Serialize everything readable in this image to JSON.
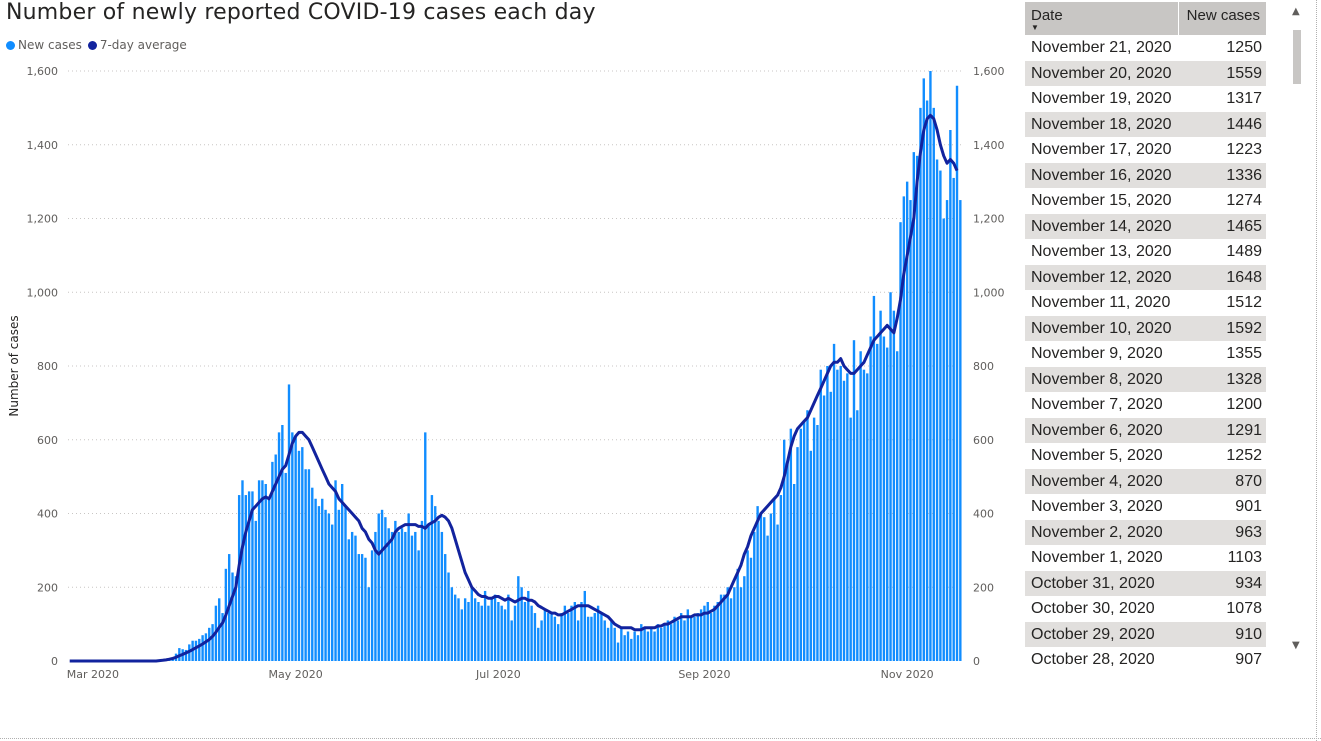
{
  "title": "Number of newly reported COVID-19 cases each day",
  "legend": [
    {
      "label": "New cases",
      "color": "#118dff"
    },
    {
      "label": "7-day average",
      "color": "#12239e"
    }
  ],
  "chart_data": {
    "type": "bar",
    "title": "Number of newly reported COVID-19 cases each day",
    "ylabel": "Number of cases",
    "xlabel": "",
    "ylim": [
      0,
      1600
    ],
    "yticks": [
      "0",
      "200",
      "400",
      "600",
      "800",
      "1,000",
      "1,200",
      "1,400",
      "1,600"
    ],
    "xticks": [
      "Mar 2020",
      "May 2020",
      "Jul 2020",
      "Sep 2020",
      "Nov 2020"
    ],
    "grid": true,
    "legend_position": "top-left",
    "x_start": "2020-02-23",
    "x_end": "2020-11-21",
    "series": [
      {
        "name": "New cases",
        "type": "bar",
        "color": "#118dff",
        "values": [
          0,
          0,
          0,
          0,
          0,
          0,
          0,
          0,
          0,
          0,
          0,
          0,
          0,
          0,
          0,
          0,
          0,
          0,
          0,
          0,
          0,
          0,
          0,
          0,
          0,
          0,
          1,
          2,
          3,
          5,
          8,
          10,
          20,
          35,
          32,
          30,
          45,
          55,
          55,
          60,
          70,
          75,
          90,
          100,
          150,
          170,
          130,
          250,
          290,
          240,
          230,
          450,
          490,
          450,
          460,
          460,
          380,
          490,
          490,
          480,
          440,
          540,
          560,
          620,
          640,
          510,
          750,
          620,
          610,
          570,
          580,
          520,
          520,
          470,
          440,
          420,
          440,
          410,
          400,
          370,
          490,
          410,
          480,
          420,
          330,
          350,
          340,
          290,
          290,
          280,
          200,
          300,
          350,
          400,
          410,
          390,
          360,
          350,
          380,
          350,
          360,
          350,
          400,
          340,
          350,
          300,
          380,
          620,
          370,
          450,
          420,
          380,
          350,
          290,
          240,
          200,
          180,
          170,
          140,
          170,
          160,
          200,
          170,
          160,
          150,
          190,
          150,
          170,
          180,
          160,
          150,
          140,
          180,
          110,
          150,
          230,
          200,
          160,
          190,
          150,
          130,
          90,
          110,
          140,
          130,
          130,
          120,
          100,
          130,
          150,
          130,
          150,
          160,
          110,
          160,
          190,
          120,
          120,
          130,
          150,
          130,
          110,
          90,
          110,
          90,
          50,
          90,
          70,
          80,
          60,
          80,
          70,
          100,
          90,
          80,
          90,
          80,
          100,
          90,
          100,
          110,
          100,
          120,
          110,
          130,
          110,
          140,
          120,
          120,
          130,
          140,
          150,
          160,
          130,
          150,
          160,
          180,
          180,
          200,
          170,
          200,
          250,
          200,
          230,
          300,
          280,
          350,
          420,
          400,
          390,
          340,
          400,
          440,
          370,
          450,
          600,
          540,
          630,
          480,
          580,
          630,
          650,
          680,
          570,
          660,
          640,
          790,
          720,
          800,
          730,
          860,
          790,
          800,
          760,
          780,
          660,
          870,
          680,
          840,
          790,
          780,
          880,
          990,
          860,
          950,
          880,
          850,
          1000,
          950,
          840,
          1190,
          1260,
          1300,
          1250,
          1380,
          1370,
          1500,
          1580,
          1520,
          1600,
          1500,
          1360,
          1330,
          1200,
          1250,
          1440,
          1310,
          1560,
          1250
        ]
      },
      {
        "name": "7-day average",
        "type": "line",
        "color": "#12239e",
        "values": [
          0,
          0,
          0,
          0,
          0,
          0,
          0,
          0,
          0,
          0,
          0,
          0,
          0,
          0,
          0,
          0,
          0,
          0,
          0,
          0,
          0,
          0,
          0,
          0,
          0,
          0,
          0,
          1,
          2,
          3,
          5,
          7,
          10,
          14,
          18,
          22,
          26,
          31,
          36,
          41,
          46,
          52,
          58,
          67,
          78,
          91,
          103,
          125,
          150,
          175,
          200,
          260,
          310,
          350,
          380,
          410,
          420,
          430,
          440,
          445,
          440,
          460,
          480,
          500,
          520,
          530,
          560,
          590,
          610,
          620,
          620,
          610,
          600,
          580,
          560,
          540,
          520,
          500,
          480,
          470,
          460,
          440,
          430,
          420,
          410,
          400,
          390,
          380,
          360,
          350,
          330,
          320,
          300,
          290,
          300,
          310,
          320,
          330,
          350,
          360,
          365,
          370,
          370,
          370,
          370,
          365,
          365,
          360,
          370,
          375,
          380,
          390,
          395,
          390,
          380,
          360,
          330,
          300,
          270,
          240,
          220,
          200,
          190,
          180,
          175,
          175,
          170,
          170,
          175,
          175,
          170,
          165,
          170,
          165,
          160,
          165,
          170,
          170,
          165,
          165,
          160,
          150,
          145,
          140,
          135,
          130,
          130,
          125,
          125,
          130,
          135,
          140,
          145,
          150,
          150,
          150,
          150,
          145,
          140,
          135,
          130,
          125,
          120,
          110,
          100,
          95,
          90,
          90,
          90,
          90,
          85,
          85,
          85,
          90,
          90,
          90,
          90,
          95,
          95,
          100,
          100,
          105,
          110,
          115,
          120,
          120,
          120,
          120,
          125,
          125,
          125,
          130,
          130,
          135,
          140,
          150,
          160,
          170,
          180,
          200,
          220,
          240,
          260,
          290,
          310,
          340,
          360,
          380,
          400,
          410,
          420,
          430,
          440,
          450,
          470,
          500,
          540,
          580,
          610,
          630,
          640,
          650,
          660,
          680,
          700,
          720,
          740,
          760,
          780,
          800,
          810,
          810,
          820,
          800,
          790,
          780,
          780,
          790,
          800,
          810,
          830,
          850,
          870,
          880,
          890,
          900,
          910,
          900,
          890,
          930,
          980,
          1050,
          1100,
          1150,
          1200,
          1300,
          1380,
          1440,
          1470,
          1480,
          1470,
          1440,
          1400,
          1370,
          1350,
          1360,
          1350,
          1330
        ]
      }
    ]
  },
  "table": {
    "headers": [
      "Date",
      "New cases"
    ],
    "rows": [
      [
        "November 21, 2020",
        "1250"
      ],
      [
        "November 20, 2020",
        "1559"
      ],
      [
        "November 19, 2020",
        "1317"
      ],
      [
        "November 18, 2020",
        "1446"
      ],
      [
        "November 17, 2020",
        "1223"
      ],
      [
        "November 16, 2020",
        "1336"
      ],
      [
        "November 15, 2020",
        "1274"
      ],
      [
        "November 14, 2020",
        "1465"
      ],
      [
        "November 13, 2020",
        "1489"
      ],
      [
        "November 12, 2020",
        "1648"
      ],
      [
        "November 11, 2020",
        "1512"
      ],
      [
        "November 10, 2020",
        "1592"
      ],
      [
        "November 9, 2020",
        "1355"
      ],
      [
        "November 8, 2020",
        "1328"
      ],
      [
        "November 7, 2020",
        "1200"
      ],
      [
        "November 6, 2020",
        "1291"
      ],
      [
        "November 5, 2020",
        "1252"
      ],
      [
        "November 4, 2020",
        "870"
      ],
      [
        "November 3, 2020",
        "901"
      ],
      [
        "November 2, 2020",
        "963"
      ],
      [
        "November 1, 2020",
        "1103"
      ],
      [
        "October 31, 2020",
        "934"
      ],
      [
        "October 30, 2020",
        "1078"
      ],
      [
        "October 29, 2020",
        "910"
      ],
      [
        "October 28, 2020",
        "907"
      ]
    ]
  }
}
